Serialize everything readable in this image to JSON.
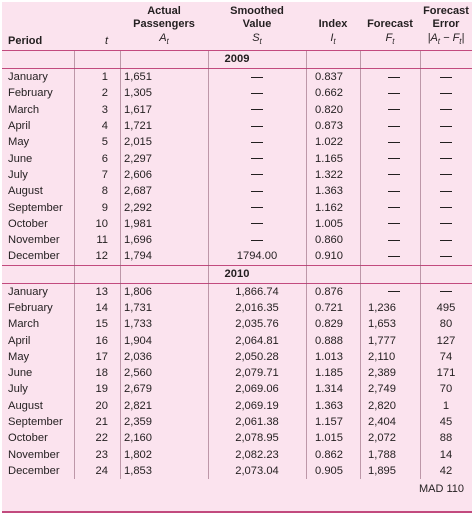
{
  "headers": {
    "period": "Period",
    "t": "t",
    "actual_line1": "Actual",
    "actual_line2": "Passengers",
    "actual_sym": "A",
    "actual_sub": "t",
    "smoothed_line1": "Smoothed",
    "smoothed_line2": "Value",
    "smoothed_sym": "S",
    "smoothed_sub": "t",
    "index": "Index",
    "index_sym": "I",
    "index_sub": "t",
    "forecast": "Forecast",
    "forecast_sym": "F",
    "forecast_sub": "t",
    "error_line1": "Forecast",
    "error_line2": "Error",
    "error_sym": "|A",
    "error_sub1": "t",
    "error_mid": " − F",
    "error_sub2": "t",
    "error_end": "|"
  },
  "year_2009": "2009",
  "year_2010": "2010",
  "rows_2009": [
    {
      "period": "January",
      "t": "1",
      "a": "1,651",
      "s": "",
      "i": "0.837",
      "f": "",
      "e": ""
    },
    {
      "period": "February",
      "t": "2",
      "a": "1,305",
      "s": "",
      "i": "0.662",
      "f": "",
      "e": ""
    },
    {
      "period": "March",
      "t": "3",
      "a": "1,617",
      "s": "",
      "i": "0.820",
      "f": "",
      "e": ""
    },
    {
      "period": "April",
      "t": "4",
      "a": "1,721",
      "s": "",
      "i": "0.873",
      "f": "",
      "e": ""
    },
    {
      "period": "May",
      "t": "5",
      "a": "2,015",
      "s": "",
      "i": "1.022",
      "f": "",
      "e": ""
    },
    {
      "period": "June",
      "t": "6",
      "a": "2,297",
      "s": "",
      "i": "1.165",
      "f": "",
      "e": ""
    },
    {
      "period": "July",
      "t": "7",
      "a": "2,606",
      "s": "",
      "i": "1.322",
      "f": "",
      "e": ""
    },
    {
      "period": "August",
      "t": "8",
      "a": "2,687",
      "s": "",
      "i": "1.363",
      "f": "",
      "e": ""
    },
    {
      "period": "September",
      "t": "9",
      "a": "2,292",
      "s": "",
      "i": "1.162",
      "f": "",
      "e": ""
    },
    {
      "period": "October",
      "t": "10",
      "a": "1,981",
      "s": "",
      "i": "1.005",
      "f": "",
      "e": ""
    },
    {
      "period": "November",
      "t": "11",
      "a": "1,696",
      "s": "",
      "i": "0.860",
      "f": "",
      "e": ""
    },
    {
      "period": "December",
      "t": "12",
      "a": "1,794",
      "s": "1794.00",
      "i": "0.910",
      "f": "",
      "e": ""
    }
  ],
  "rows_2010": [
    {
      "period": "January",
      "t": "13",
      "a": "1,806",
      "s": "1,866.74",
      "i": "0.876",
      "f": "",
      "e": ""
    },
    {
      "period": "February",
      "t": "14",
      "a": "1,731",
      "s": "2,016.35",
      "i": "0.721",
      "f": "1,236",
      "e": "495"
    },
    {
      "period": "March",
      "t": "15",
      "a": "1,733",
      "s": "2,035.76",
      "i": "0.829",
      "f": "1,653",
      "e": "80"
    },
    {
      "period": "April",
      "t": "16",
      "a": "1,904",
      "s": "2,064.81",
      "i": "0.888",
      "f": "1,777",
      "e": "127"
    },
    {
      "period": "May",
      "t": "17",
      "a": "2,036",
      "s": "2,050.28",
      "i": "1.013",
      "f": "2,110",
      "e": "74"
    },
    {
      "period": "June",
      "t": "18",
      "a": "2,560",
      "s": "2,079.71",
      "i": "1.185",
      "f": "2,389",
      "e": "171"
    },
    {
      "period": "July",
      "t": "19",
      "a": "2,679",
      "s": "2,069.06",
      "i": "1.314",
      "f": "2,749",
      "e": "70"
    },
    {
      "period": "August",
      "t": "20",
      "a": "2,821",
      "s": "2,069.19",
      "i": "1.363",
      "f": "2,820",
      "e": "1"
    },
    {
      "period": "September",
      "t": "21",
      "a": "2,359",
      "s": "2,061.38",
      "i": "1.157",
      "f": "2,404",
      "e": "45"
    },
    {
      "period": "October",
      "t": "22",
      "a": "2,160",
      "s": "2,078.95",
      "i": "1.015",
      "f": "2,072",
      "e": "88"
    },
    {
      "period": "November",
      "t": "23",
      "a": "1,802",
      "s": "2,082.23",
      "i": "0.862",
      "f": "1,788",
      "e": "14"
    },
    {
      "period": "December",
      "t": "24",
      "a": "1,853",
      "s": "2,073.04",
      "i": "0.905",
      "f": "1,895",
      "e": "42"
    }
  ],
  "mad_label": "MAD 110"
}
